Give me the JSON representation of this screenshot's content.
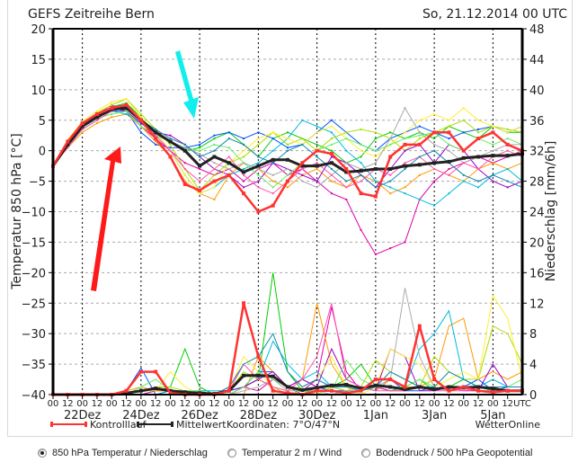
{
  "chart_data": {
    "type": "line",
    "title": "GEFS Zeitreihe Bern",
    "run_label": "So, 21.12.2014 00 UTC",
    "ylabel": "Temperatur 850 hPa [°C]",
    "y2label": "Niederschlag [mm/6h]",
    "ylim": [
      -40,
      20
    ],
    "y2lim": [
      0,
      48
    ],
    "yticks": [
      20,
      15,
      10,
      5,
      0,
      -5,
      -10,
      -15,
      -20,
      -25,
      -30,
      -35,
      -40
    ],
    "y2ticks": [
      48,
      44,
      40,
      36,
      32,
      28,
      24,
      20,
      16,
      12,
      8,
      4,
      0
    ],
    "x_start": "21.12.2014 00 UTC",
    "x_step_hours": 12,
    "xtick_labels": [
      "00",
      "12",
      "00",
      "12",
      "00",
      "12",
      "00",
      "12",
      "00",
      "12",
      "00",
      "12",
      "00",
      "12",
      "00",
      "12",
      "00",
      "12",
      "00",
      "12",
      "00",
      "12",
      "00",
      "12",
      "00",
      "12",
      "00",
      "12",
      "00",
      "12",
      "00",
      "12"
    ],
    "x_unit_label": "UTC",
    "date_labels": [
      "22Dez",
      "24Dez",
      "26Dez",
      "28Dez",
      "30Dez",
      "1Jan",
      "3Jan",
      "5Jan"
    ],
    "grid": true,
    "legend": [
      {
        "name": "Kontrolllauf",
        "color": "#ff3333"
      },
      {
        "name": "Mittelwert",
        "color": "#222222"
      }
    ],
    "footer": {
      "coordinates": "Koordinaten: 7°O/47°N",
      "source": "WetterOnline"
    },
    "series": [
      {
        "name": "Mittelwert",
        "kind": "temperature",
        "color": "#222222",
        "values": [
          -2.5,
          1,
          4,
          5.5,
          6.8,
          7,
          5,
          3,
          1.5,
          0,
          -2.5,
          -1,
          -2,
          -3.5,
          -2.5,
          -1.5,
          -1.5,
          -2.5,
          -2.5,
          -2,
          -3.5,
          -3.3,
          -3,
          -3,
          -2.5,
          -2.3,
          -2,
          -1.8,
          -1.2,
          -1,
          -0.8,
          -0.8,
          -0.5
        ]
      },
      {
        "name": "Kontrolllauf",
        "kind": "temperature",
        "color": "#ff3333",
        "values": [
          -2.5,
          1.5,
          4.5,
          6,
          7,
          7.5,
          5,
          2,
          -1,
          -5.5,
          -6.5,
          -5,
          -4,
          -7,
          -10,
          -9,
          -5,
          -2,
          0,
          -0.5,
          -3,
          -7,
          -7.5,
          -1,
          1,
          1,
          3,
          3,
          0,
          2,
          3,
          1,
          0
        ]
      },
      {
        "name": "Mittelwert Niederschlag",
        "kind": "precipitation",
        "color": "#222222",
        "values": [
          0,
          0,
          0,
          0,
          0,
          0.2,
          0.5,
          0.8,
          0.5,
          0.3,
          0.2,
          0.1,
          0.5,
          2.5,
          2.5,
          2.4,
          1,
          0.6,
          0.9,
          1.2,
          1.3,
          0.8,
          1.2,
          1,
          0.7,
          1,
          0.7,
          1,
          0.9,
          1,
          0.8,
          0.5,
          0.5
        ]
      },
      {
        "name": "Kontrolllauf Niederschlag",
        "kind": "precipitation",
        "color": "#ff3333",
        "values": [
          0,
          0,
          0,
          0,
          0,
          0.5,
          3,
          3,
          0.2,
          0,
          0,
          0,
          0.5,
          12,
          5,
          0.5,
          0.2,
          0,
          0.5,
          0.5,
          0.2,
          0.5,
          2,
          2,
          1,
          9,
          2,
          0.5,
          1,
          0.5,
          0.3,
          0.5,
          0.5
        ]
      }
    ],
    "members": [
      {
        "color": "#00cc00",
        "temp": [
          -2.5,
          1.2,
          4.2,
          5.8,
          7.2,
          7.8,
          5.5,
          3,
          1.5,
          0,
          0.5,
          2,
          3,
          1,
          -1,
          2,
          3,
          2,
          1,
          0,
          -2,
          -1,
          2,
          3,
          2,
          3,
          2,
          4,
          3,
          2,
          4,
          3,
          3
        ],
        "precip": [
          0,
          0,
          0,
          0,
          0,
          0,
          0,
          0.5,
          1,
          6,
          1,
          0,
          0,
          1,
          2,
          16,
          3,
          0.5,
          0,
          1,
          2,
          4,
          1,
          0.5,
          1,
          2,
          0.5,
          1,
          2,
          1,
          0.5,
          0.5,
          0.5
        ]
      },
      {
        "color": "#0055ff",
        "temp": [
          -2.5,
          0.8,
          4,
          5.5,
          6.5,
          6.5,
          3,
          1,
          0.5,
          0.5,
          1,
          2.5,
          3,
          2,
          3,
          2,
          0.5,
          1,
          3,
          5,
          3,
          1,
          0,
          2,
          3,
          4,
          3,
          2,
          3,
          3.5,
          4,
          3,
          4
        ],
        "precip": [
          0,
          0,
          0,
          0,
          0,
          0.5,
          3.5,
          0,
          0,
          0,
          0,
          0,
          0.5,
          1,
          3,
          3,
          1,
          0,
          1,
          0.5,
          0.5,
          1,
          0.5,
          2,
          0.5,
          0.5,
          1,
          0.5,
          1,
          2,
          0.5,
          1,
          1
        ]
      },
      {
        "color": "#dd00aa",
        "temp": [
          -2.5,
          1,
          4,
          6,
          7.5,
          6.5,
          4,
          2,
          0,
          -2,
          -3,
          -4,
          -3,
          -5,
          -3,
          -2,
          -4,
          -3,
          -5,
          -7,
          -8,
          -13,
          -17,
          -16,
          -15,
          -8,
          -5,
          -3,
          -2,
          -1,
          -2,
          -1,
          0
        ],
        "precip": [
          0,
          0,
          0,
          0,
          0,
          0,
          0,
          0.5,
          0.5,
          0,
          0,
          0,
          0,
          1,
          0.5,
          2,
          1,
          0.5,
          2,
          11.5,
          3,
          0.5,
          1,
          0.5,
          0.5,
          1,
          0.5,
          1,
          0.5,
          0.5,
          0.5,
          0.5,
          0.5
        ]
      },
      {
        "color": "#ff9900",
        "temp": [
          -2.5,
          0.5,
          3,
          4.5,
          5.5,
          6,
          4,
          1.5,
          -1,
          -5,
          -7,
          -8,
          -4,
          -2,
          -3,
          -5,
          -6,
          -4,
          -3,
          -5,
          -6,
          -4,
          -5,
          -7,
          -6,
          -4,
          -3,
          -4,
          -5,
          -3,
          -2,
          -3,
          -2
        ],
        "precip": [
          0,
          0,
          0,
          0,
          0,
          0.5,
          1,
          0.5,
          0.5,
          0,
          0,
          0,
          0,
          0,
          5,
          3,
          1,
          2,
          12,
          4,
          1,
          1,
          0.5,
          2,
          1,
          1,
          2,
          9,
          10,
          2,
          3,
          2,
          3
        ]
      },
      {
        "color": "#00bbdd",
        "temp": [
          -2.5,
          0.8,
          3.5,
          5,
          6.5,
          6,
          4.5,
          2.5,
          0,
          -4,
          -7,
          -6,
          -4,
          -3,
          -2,
          0,
          2,
          5,
          4,
          3,
          0,
          -2,
          -5,
          -6,
          -7,
          -8,
          -9,
          -7,
          -5,
          -6,
          -4,
          -3,
          -5
        ],
        "precip": [
          0,
          0,
          0,
          0,
          0,
          0,
          0,
          0,
          0.5,
          0.5,
          0.5,
          0.5,
          0.5,
          1,
          2,
          7,
          4,
          2,
          3,
          1,
          0.5,
          0.5,
          1,
          1,
          1,
          6,
          8,
          11,
          2,
          1,
          2,
          1,
          1
        ]
      },
      {
        "color": "#aadd00",
        "temp": [
          -2.5,
          1.5,
          4.5,
          6.2,
          7.5,
          8.5,
          6,
          3.5,
          1,
          -3,
          -6.5,
          -4,
          -2,
          -1,
          1,
          3,
          1,
          2,
          0,
          2,
          3,
          3.5,
          3,
          2,
          0,
          2,
          3,
          4,
          5,
          3,
          4,
          3.5,
          3
        ],
        "precip": [
          0,
          0,
          0,
          0,
          0,
          0,
          0.5,
          1,
          1,
          0.5,
          0,
          0,
          0.5,
          3,
          2,
          1,
          0,
          0.5,
          0,
          1,
          0.5,
          1,
          4.5,
          3,
          2,
          1,
          5,
          3,
          2,
          2,
          9,
          8,
          4
        ]
      },
      {
        "color": "#9900cc",
        "temp": [
          -2.5,
          1,
          4,
          5.8,
          7,
          6.5,
          4.5,
          3,
          2.5,
          1,
          -1,
          -3,
          -4,
          -6,
          -5,
          -2,
          -3,
          -4,
          -5,
          -1,
          -2,
          -4,
          -6,
          -3,
          0,
          1,
          -2,
          1,
          0,
          -3,
          -5,
          -6,
          -5
        ],
        "precip": [
          0,
          0,
          0,
          0,
          0,
          0,
          0.5,
          1,
          0.5,
          0.5,
          0,
          0,
          0.5,
          1,
          2,
          3,
          1,
          2,
          1,
          6,
          2,
          1,
          0.5,
          6,
          5,
          0.5,
          0.5,
          1,
          1,
          0.5,
          4,
          1,
          1
        ]
      },
      {
        "color": "#ffee33",
        "temp": [
          -2.5,
          1.8,
          4.8,
          6.5,
          8,
          8.5,
          5.5,
          3,
          0,
          -4,
          -7,
          -6,
          -2,
          0,
          2,
          3,
          2,
          1,
          3,
          4,
          2,
          0,
          -1,
          1,
          3,
          5,
          6,
          5,
          7,
          5,
          4,
          3,
          4
        ],
        "precip": [
          0,
          0,
          0,
          0,
          0,
          0,
          0.5,
          0.5,
          3,
          1,
          0,
          0,
          0.5,
          5,
          3,
          1,
          0.5,
          1,
          2,
          5,
          1,
          0,
          1,
          6,
          5,
          4,
          1,
          2,
          3,
          2,
          13,
          10,
          2
        ]
      },
      {
        "color": "#66ee66",
        "temp": [
          -2.5,
          0.9,
          3.8,
          5.3,
          6,
          6.5,
          4,
          2.5,
          1.5,
          0.5,
          0,
          1,
          0.5,
          -2,
          -4,
          -6,
          -4,
          -2,
          0,
          1,
          2,
          1,
          0,
          1,
          2,
          2.5,
          3,
          1,
          0,
          2,
          1,
          2,
          1
        ],
        "precip": [
          0,
          0,
          0,
          0,
          0,
          0,
          1,
          2,
          0.5,
          0.5,
          0.5,
          0,
          0,
          1,
          3,
          2,
          1,
          0.5,
          0.5,
          0.5,
          4.5,
          2,
          1,
          1,
          1,
          2,
          1,
          0.5,
          1,
          1,
          1,
          1,
          2
        ]
      },
      {
        "color": "#aaaaaa",
        "temp": [
          -2.5,
          1,
          3.8,
          5.5,
          7,
          7,
          5,
          3,
          1.5,
          0.5,
          -0.5,
          -2,
          -3,
          -2,
          -3,
          -4,
          -3,
          -5,
          -6,
          -4,
          -2,
          -3,
          -2,
          2,
          7,
          3,
          1,
          0,
          -2,
          -1,
          0,
          1,
          1
        ],
        "precip": [
          0,
          0,
          0,
          0,
          0,
          0,
          0,
          0,
          0,
          0,
          0,
          0,
          0,
          0.5,
          1,
          2,
          0.5,
          0.5,
          0.5,
          0,
          0.5,
          0.5,
          1,
          2,
          14,
          5,
          1,
          0.5,
          1,
          0.5,
          0.5,
          0.5,
          0.5
        ]
      },
      {
        "color": "#ff55aa",
        "temp": [
          -2.5,
          0.5,
          3.5,
          5,
          6.5,
          7,
          4.8,
          2.5,
          0,
          -3,
          -5,
          -3,
          -1,
          -4,
          -6,
          -7,
          -5,
          -3,
          -2,
          -4,
          -6,
          -5,
          -3,
          -4,
          -2,
          -1,
          -3,
          -4,
          -2,
          -3,
          -1,
          0,
          -1
        ],
        "precip": [
          0,
          0,
          0,
          0,
          0,
          0,
          0,
          0,
          0,
          0,
          0,
          0,
          0.5,
          4,
          2,
          1,
          0.5,
          2,
          5,
          12,
          2,
          1,
          0.5,
          0.5,
          0.5,
          1,
          0.5,
          0.5,
          0.5,
          1,
          1,
          0.5,
          0.5
        ]
      },
      {
        "color": "#1188aa",
        "temp": [
          -2.5,
          1.2,
          4.3,
          6,
          7,
          7.2,
          5,
          3.5,
          2,
          1,
          -1,
          0,
          2,
          1,
          -1,
          -2,
          0,
          1,
          -1,
          -3,
          -5,
          -4,
          -6,
          -5,
          -3,
          -1,
          0,
          -2,
          -4,
          -5,
          -4,
          -5,
          -6
        ],
        "precip": [
          0,
          0,
          0,
          0,
          0,
          0,
          0,
          0,
          0.5,
          0.5,
          0,
          0,
          1,
          4,
          5,
          8,
          3,
          1,
          2,
          1,
          1,
          0.5,
          1,
          3,
          2,
          1,
          1,
          3,
          2,
          1,
          1,
          1,
          1
        ]
      }
    ]
  },
  "selector": {
    "options": [
      {
        "label": "850 hPa Temperatur / Niederschlag",
        "selected": true
      },
      {
        "label": "Temperatur 2 m / Wind",
        "selected": false
      },
      {
        "label": "Bodendruck / 500 hPa Geopotential",
        "selected": false
      }
    ]
  },
  "annotations": {
    "red_arrow": "red-arrow",
    "cyan_arrow": "cyan-arrow"
  }
}
